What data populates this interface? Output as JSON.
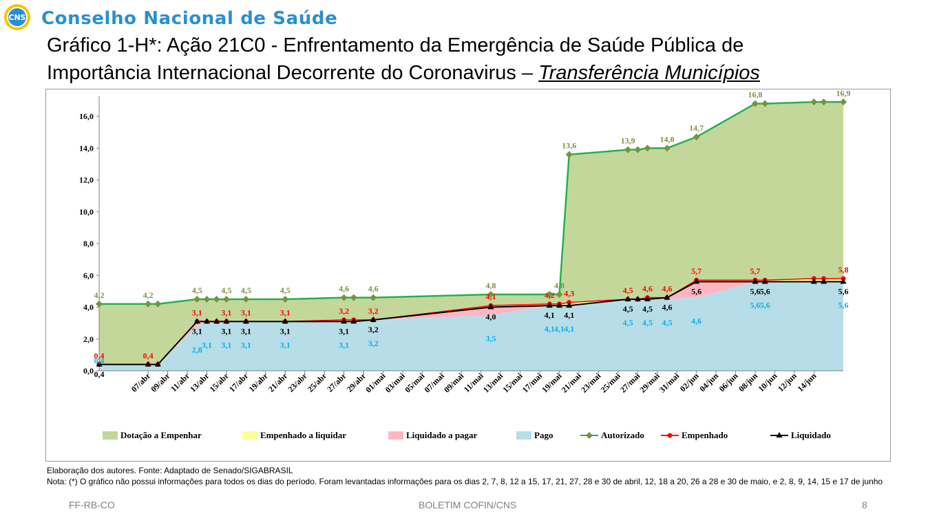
{
  "header": {
    "logo_text": "CNS",
    "org_name": "Conselho Nacional de Saúde",
    "title_line1": "Gráfico 1-H*: Ação 21C0 - Enfrentamento da Emergência de Saúde Pública de",
    "title_line2": "Importância Internacional Decorrente do Coronavirus",
    "title_dash": " – ",
    "title_subtitle": "Transferência Municípios"
  },
  "notes": {
    "source": "Elaboração dos autores. Fonte: Adaptado de Senado/SIGABRASIL",
    "note": "Nota: (*) O gráfico não possui informações para todos os dias do período. Foram levantadas informações para os dias 2, 7, 8, 12 a 15, 17, 21, 27, 28 e 30 de abril, 12, 18 a 20, 26 a 28 e 30 de maio, e 2, 8, 9, 14, 15 e 17 de junho"
  },
  "footer": {
    "left": "FF-RB-CO",
    "center": "BOLETIM COFIN/CNS",
    "page": "8"
  },
  "colors": {
    "dotacao": "#c4d79b",
    "empenhado_liquidar": "#ffff99",
    "liquidado_pagar": "#ffb6c1",
    "pago": "#b7dde8",
    "autorizado": "#22b14c",
    "autorizado_marker": "#77933c",
    "empenhado": "#ff0000",
    "liquidado": "#000000",
    "pago_label": "#00b0f0"
  },
  "chart_data": {
    "type": "area",
    "y_ticks": [
      "0,0",
      "2,0",
      "4,0",
      "6,0",
      "8,0",
      "10,0",
      "12,0",
      "14,0",
      "16,0"
    ],
    "ylim": [
      0,
      17
    ],
    "x_tick_labels": [
      "07/abr",
      "09/abr",
      "11/abr",
      "13/abr",
      "15/abr",
      "17/abr",
      "19/abr",
      "21/abr",
      "23/abr",
      "25/abr",
      "27/abr",
      "29/abr",
      "01/mai",
      "03/mai",
      "05/mai",
      "07/mai",
      "09/mai",
      "11/mai",
      "13/mai",
      "15/mai",
      "17/mai",
      "19/mai",
      "21/mai",
      "23/mai",
      "25/mai",
      "27/mai",
      "29/mai",
      "31/mai",
      "02/jun",
      "04/jun",
      "06/jun",
      "08/jun",
      "10/jun",
      "12/jun",
      "14/jun"
    ],
    "x_range": [
      "2020-04-02",
      "2020-06-17"
    ],
    "dates": [
      "2020-04-02",
      "2020-04-07",
      "2020-04-08",
      "2020-04-12",
      "2020-04-13",
      "2020-04-14",
      "2020-04-15",
      "2020-04-17",
      "2020-04-21",
      "2020-04-27",
      "2020-04-28",
      "2020-04-30",
      "2020-05-12",
      "2020-05-18",
      "2020-05-19",
      "2020-05-20",
      "2020-05-26",
      "2020-05-27",
      "2020-05-28",
      "2020-05-30",
      "2020-06-02",
      "2020-06-08",
      "2020-06-09",
      "2020-06-14",
      "2020-06-15",
      "2020-06-17"
    ],
    "series": [
      {
        "name": "Autorizado",
        "values": [
          4.2,
          4.2,
          4.2,
          4.5,
          4.5,
          4.5,
          4.5,
          4.5,
          4.5,
          4.6,
          4.6,
          4.6,
          4.8,
          4.8,
          4.8,
          13.6,
          13.9,
          13.9,
          14.0,
          14.0,
          14.7,
          16.8,
          16.8,
          16.9,
          16.9,
          16.9
        ]
      },
      {
        "name": "Empenhado",
        "values": [
          0.4,
          0.4,
          0.4,
          3.1,
          3.1,
          3.1,
          3.1,
          3.1,
          3.1,
          3.2,
          3.2,
          3.2,
          4.1,
          4.2,
          4.2,
          4.3,
          4.5,
          4.5,
          4.6,
          4.6,
          5.7,
          5.7,
          5.7,
          5.8,
          5.8,
          5.8
        ]
      },
      {
        "name": "Liquidado",
        "values": [
          0.4,
          0.4,
          0.4,
          3.1,
          3.1,
          3.1,
          3.1,
          3.1,
          3.1,
          3.1,
          3.1,
          3.2,
          4.0,
          4.1,
          4.1,
          4.1,
          4.5,
          4.5,
          4.5,
          4.6,
          5.6,
          5.6,
          5.6,
          5.6,
          5.6,
          5.6
        ]
      },
      {
        "name": "Pago",
        "values": [
          0.4,
          0.4,
          0.4,
          2.8,
          3.1,
          3.1,
          3.1,
          3.1,
          3.1,
          3.1,
          3.1,
          3.2,
          3.5,
          4.1,
          4.1,
          4.1,
          4.5,
          4.5,
          4.5,
          4.5,
          4.6,
          5.6,
          5.6,
          5.6,
          5.6,
          5.6
        ]
      }
    ],
    "area_legend": [
      {
        "name": "Dotação a Empenhar",
        "color": "#c4d79b"
      },
      {
        "name": "Empenhado a liquidar",
        "color": "#ffff99"
      },
      {
        "name": "Liquidado a pagar",
        "color": "#ffb6c1"
      },
      {
        "name": "Pago",
        "color": "#b7dde8"
      }
    ],
    "data_labels": {
      "autorizado": [
        {
          "date": "2020-04-02",
          "text": "4,2"
        },
        {
          "date": "2020-04-07",
          "text": "4,2"
        },
        {
          "date": "2020-04-12",
          "text": "4,5"
        },
        {
          "date": "2020-04-15",
          "text": "4,5"
        },
        {
          "date": "2020-04-17",
          "text": "4,5"
        },
        {
          "date": "2020-04-21",
          "text": "4,5"
        },
        {
          "date": "2020-04-27",
          "text": "4,6"
        },
        {
          "date": "2020-04-30",
          "text": "4,6"
        },
        {
          "date": "2020-05-12",
          "text": "4,8"
        },
        {
          "date": "2020-05-19",
          "text": "4,8"
        },
        {
          "date": "2020-05-20",
          "text": "13,6"
        },
        {
          "date": "2020-05-26",
          "text": "13,9"
        },
        {
          "date": "2020-05-30",
          "text": "14,0"
        },
        {
          "date": "2020-06-02",
          "text": "14,7"
        },
        {
          "date": "2020-06-08",
          "text": "16,8"
        },
        {
          "date": "2020-06-17",
          "text": "16,9"
        }
      ],
      "empenhado": [
        {
          "date": "2020-04-02",
          "text": "0,4"
        },
        {
          "date": "2020-04-07",
          "text": "0,4"
        },
        {
          "date": "2020-04-12",
          "text": "3,1"
        },
        {
          "date": "2020-04-15",
          "text": "3,1"
        },
        {
          "date": "2020-04-17",
          "text": "3,1"
        },
        {
          "date": "2020-04-21",
          "text": "3,1"
        },
        {
          "date": "2020-04-27",
          "text": "3,2"
        },
        {
          "date": "2020-04-30",
          "text": "3,2"
        },
        {
          "date": "2020-05-12",
          "text": "4,1"
        },
        {
          "date": "2020-05-18",
          "text": "4,2"
        },
        {
          "date": "2020-05-20",
          "text": "4,3"
        },
        {
          "date": "2020-05-26",
          "text": "4,5"
        },
        {
          "date": "2020-05-28",
          "text": "4,6"
        },
        {
          "date": "2020-05-30",
          "text": "4,6"
        },
        {
          "date": "2020-06-02",
          "text": "5,7"
        },
        {
          "date": "2020-06-08",
          "text": "5,7"
        },
        {
          "date": "2020-06-17",
          "text": "5,8"
        }
      ],
      "liquidado": [
        {
          "date": "2020-04-02",
          "text": "0,4"
        },
        {
          "date": "2020-04-12",
          "text": "3,1"
        },
        {
          "date": "2020-04-15",
          "text": "3,1"
        },
        {
          "date": "2020-04-17",
          "text": "3,1"
        },
        {
          "date": "2020-04-21",
          "text": "3,1"
        },
        {
          "date": "2020-04-27",
          "text": "3,1"
        },
        {
          "date": "2020-04-30",
          "text": "3,2"
        },
        {
          "date": "2020-05-12",
          "text": "4,0"
        },
        {
          "date": "2020-05-18",
          "text": "4,1"
        },
        {
          "date": "2020-05-20",
          "text": "4,1"
        },
        {
          "date": "2020-05-26",
          "text": "4,5"
        },
        {
          "date": "2020-05-28",
          "text": "4,5"
        },
        {
          "date": "2020-05-30",
          "text": "4,6"
        },
        {
          "date": "2020-06-02",
          "text": "5,6"
        },
        {
          "date": "2020-06-08",
          "text": "5,6"
        },
        {
          "date": "2020-06-09",
          "text": "5,6"
        },
        {
          "date": "2020-06-17",
          "text": "5,6"
        }
      ],
      "pago": [
        {
          "date": "2020-04-02",
          "text": "0,4"
        },
        {
          "date": "2020-04-12",
          "text": "2,8"
        },
        {
          "date": "2020-04-13",
          "text": "3,1"
        },
        {
          "date": "2020-04-15",
          "text": "3,1"
        },
        {
          "date": "2020-04-17",
          "text": "3,1"
        },
        {
          "date": "2020-04-21",
          "text": "3,1"
        },
        {
          "date": "2020-04-27",
          "text": "3,1"
        },
        {
          "date": "2020-04-30",
          "text": "3,2"
        },
        {
          "date": "2020-05-12",
          "text": "3,5"
        },
        {
          "date": "2020-05-18",
          "text": "4,1"
        },
        {
          "date": "2020-05-19",
          "text": "4,1"
        },
        {
          "date": "2020-05-20",
          "text": "4,1"
        },
        {
          "date": "2020-05-26",
          "text": "4,5"
        },
        {
          "date": "2020-05-28",
          "text": "4,5"
        },
        {
          "date": "2020-05-30",
          "text": "4,5"
        },
        {
          "date": "2020-06-02",
          "text": "4,6"
        },
        {
          "date": "2020-06-08",
          "text": "5,6"
        },
        {
          "date": "2020-06-09",
          "text": "5,6"
        },
        {
          "date": "2020-06-17",
          "text": "5,6"
        }
      ]
    },
    "legend": [
      {
        "type": "area",
        "name": "Dotação a Empenhar",
        "color": "#c4d79b"
      },
      {
        "type": "area",
        "name": "Empenhado a liquidar",
        "color": "#ffff99"
      },
      {
        "type": "area",
        "name": "Liquidado a pagar",
        "color": "#ffb6c1"
      },
      {
        "type": "area",
        "name": "Pago",
        "color": "#b7dde8"
      },
      {
        "type": "line",
        "name": "Autorizado",
        "color": "#22b14c",
        "marker": "diamond",
        "marker_color": "#77933c"
      },
      {
        "type": "line",
        "name": "Empenhado",
        "color": "#ff0000",
        "marker": "circle",
        "marker_color": "#ff0000"
      },
      {
        "type": "line",
        "name": "Liquidado",
        "color": "#000000",
        "marker": "triangle",
        "marker_color": "#000000"
      }
    ],
    "legend_position": "bottom",
    "grid": false
  }
}
